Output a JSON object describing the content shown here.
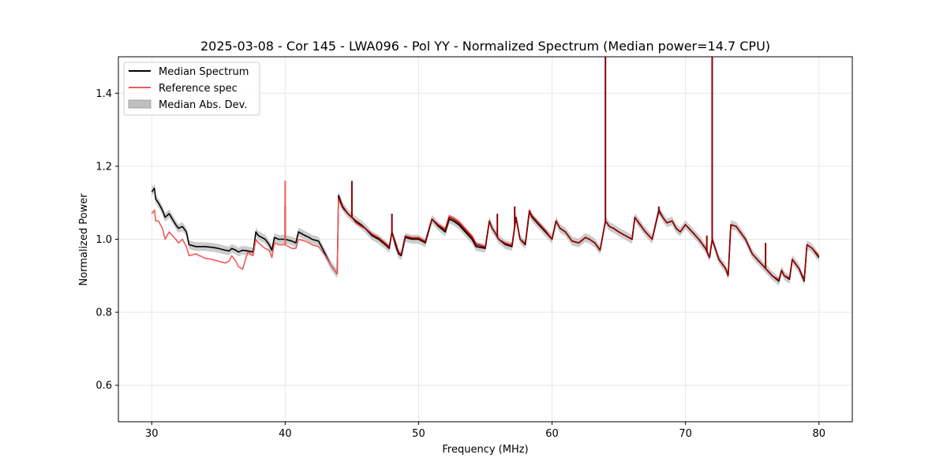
{
  "chart_data": {
    "type": "line",
    "title": "2025-03-08 - Cor 145 - LWA096 - Pol YY - Normalized Spectrum (Median power=14.7 CPU)",
    "xlabel": "Frequency (MHz)",
    "ylabel": "Normalized Power",
    "xlim": [
      27.5,
      82.5
    ],
    "ylim": [
      0.5,
      1.5
    ],
    "xticks": [
      30,
      40,
      50,
      60,
      70,
      80
    ],
    "yticks": [
      0.6,
      0.8,
      1.0,
      1.2,
      1.4
    ],
    "xtick_labels": [
      "30",
      "40",
      "50",
      "60",
      "70",
      "80"
    ],
    "ytick_labels": [
      "0.6",
      "0.8",
      "1.0",
      "1.2",
      "1.4"
    ],
    "grid": true,
    "legend_position": "top-left",
    "legend": [
      "Median Spectrum",
      "Reference spec",
      "Median Abs. Dev."
    ],
    "colors": {
      "median": "#000000",
      "reference": "#f05a5a",
      "overlap": "#8b0000",
      "mad": "#bfbfbf"
    },
    "series": [
      {
        "name": "Median Spectrum",
        "x": [
          30,
          30.2,
          30.3,
          30.5,
          30.8,
          31.0,
          31.3,
          31.8,
          32.0,
          32.3,
          32.6,
          32.8,
          33.3,
          34,
          34.5,
          35,
          35.5,
          35.8,
          36.0,
          36.3,
          36.5,
          36.8,
          37.2,
          37.6,
          37.8,
          38,
          38.5,
          38.8,
          39.0,
          39.2,
          39.5,
          40,
          40.5,
          40.8,
          41,
          41.5,
          41.8,
          42,
          42.5,
          43,
          43.4,
          43.9,
          44.0,
          44.3,
          44.7,
          45.0,
          45.3,
          45.7,
          46,
          46.5,
          47,
          47.5,
          47.8,
          48,
          48.3,
          48.5,
          48.7,
          49.0,
          49.5,
          50,
          50.5,
          51,
          51.5,
          52,
          52.3,
          52.6,
          53,
          54,
          54.3,
          55,
          55.3,
          55.5,
          55.7,
          56.0,
          56.5,
          57,
          57.3,
          57.6,
          58.0,
          58.3,
          58.5,
          59,
          59.5,
          60,
          60.3,
          60.6,
          61.0,
          61.5,
          62,
          62.5,
          62.8,
          63.2,
          63.6,
          64.0,
          64.3,
          64.6,
          65,
          65.5,
          66,
          66.2,
          66.4,
          66.6,
          67,
          67.5,
          68,
          68.3,
          68.6,
          69,
          69.3,
          69.6,
          70,
          70.5,
          71,
          71.5,
          71.8,
          72.0,
          72.5,
          73.0,
          73.2,
          73.4,
          73.8,
          74.5,
          75,
          75.5,
          76,
          76.5,
          77,
          77.2,
          77.4,
          77.8,
          78,
          78.5,
          78.9,
          79.1,
          79.5,
          80
        ],
        "values": [
          1.13,
          1.14,
          1.11,
          1.1,
          1.08,
          1.06,
          1.07,
          1.04,
          1.03,
          1.035,
          1.02,
          0.985,
          0.98,
          0.98,
          0.978,
          0.975,
          0.97,
          0.968,
          0.975,
          0.97,
          0.965,
          0.97,
          0.968,
          0.965,
          1.02,
          1.01,
          1.0,
          0.985,
          0.97,
          1.005,
          1.0,
          1.0,
          0.995,
          0.99,
          1.02,
          1.01,
          1.005,
          1.0,
          0.995,
          0.96,
          0.93,
          0.905,
          1.12,
          1.09,
          1.07,
          1.06,
          1.05,
          1.04,
          1.03,
          1.01,
          1.0,
          0.985,
          0.975,
          1.02,
          0.98,
          0.96,
          0.955,
          1.005,
          1.0,
          1.0,
          0.99,
          1.055,
          1.035,
          1.02,
          1.055,
          1.05,
          1.04,
          1.0,
          0.98,
          0.975,
          1.05,
          1.03,
          1.02,
          1.0,
          0.985,
          0.98,
          1.06,
          1.0,
          0.985,
          1.075,
          1.06,
          1.04,
          1.02,
          1.0,
          1.05,
          1.03,
          1.02,
          0.995,
          0.99,
          1.005,
          1.0,
          0.99,
          0.97,
          1.05,
          1.035,
          1.03,
          1.02,
          1.01,
          1.0,
          1.06,
          1.05,
          1.04,
          1.02,
          1.0,
          1.08,
          1.06,
          1.045,
          1.05,
          1.03,
          1.02,
          1.04,
          1.02,
          1.0,
          0.975,
          0.95,
          1.0,
          0.945,
          0.92,
          0.9,
          1.04,
          1.035,
          1.0,
          0.96,
          0.94,
          0.92,
          0.9,
          0.885,
          0.915,
          0.9,
          0.89,
          0.945,
          0.92,
          0.885,
          0.985,
          0.975,
          0.95
        ]
      },
      {
        "name": "Reference spec",
        "x": [
          30,
          30.2,
          30.3,
          30.5,
          30.8,
          31.0,
          31.3,
          31.8,
          32.0,
          32.3,
          32.6,
          32.8,
          33.3,
          34,
          34.5,
          35,
          35.5,
          35.8,
          36.0,
          36.3,
          36.5,
          36.8,
          37.2,
          37.6,
          37.8,
          38,
          38.5,
          38.8,
          39.0,
          39.2,
          39.5,
          40,
          40.5,
          40.8,
          41,
          41.5,
          41.8,
          42,
          42.5,
          43,
          43.4,
          43.9,
          44.0,
          44.3,
          44.7,
          45.0,
          45.3,
          45.7,
          46,
          46.5,
          47,
          47.5,
          47.8,
          48,
          48.3,
          48.5,
          48.7,
          49.0,
          49.5,
          50,
          50.5,
          51,
          51.5,
          52,
          52.3,
          52.6,
          53,
          54,
          54.3,
          55,
          55.3,
          55.5,
          55.7,
          56.0,
          56.5,
          57,
          57.3,
          57.6,
          58.0,
          58.3,
          58.5,
          59,
          59.5,
          60,
          60.3,
          60.6,
          61.0,
          61.5,
          62,
          62.5,
          62.8,
          63.2,
          63.6,
          64.0,
          64.3,
          64.6,
          65,
          65.5,
          66,
          66.2,
          66.4,
          66.6,
          67,
          67.5,
          68,
          68.3,
          68.6,
          69,
          69.3,
          69.6,
          70,
          70.5,
          71,
          71.5,
          71.8,
          72.0,
          72.5,
          73.0,
          73.2,
          73.4,
          73.8,
          74.5,
          75,
          75.5,
          76,
          76.5,
          77,
          77.2,
          77.4,
          77.8,
          78,
          78.5,
          78.9,
          79.1,
          79.5,
          80
        ],
        "values": [
          1.07,
          1.08,
          1.05,
          1.05,
          1.03,
          1.0,
          1.02,
          1.0,
          0.99,
          1.0,
          0.98,
          0.955,
          0.96,
          0.948,
          0.945,
          0.94,
          0.935,
          0.94,
          0.955,
          0.94,
          0.925,
          0.918,
          0.965,
          0.955,
          1.0,
          0.99,
          0.975,
          0.97,
          0.95,
          0.99,
          0.985,
          0.985,
          0.975,
          0.975,
          1.0,
          0.995,
          0.99,
          0.985,
          0.98,
          0.955,
          0.93,
          0.905,
          1.11,
          1.085,
          1.07,
          1.06,
          1.045,
          1.035,
          1.03,
          1.015,
          1.005,
          0.99,
          0.98,
          1.02,
          0.99,
          0.965,
          0.96,
          1.01,
          1.005,
          1.005,
          0.995,
          1.055,
          1.04,
          1.03,
          1.065,
          1.06,
          1.05,
          1.01,
          0.99,
          0.98,
          1.05,
          1.03,
          1.02,
          1.0,
          0.99,
          0.985,
          1.06,
          1.0,
          0.99,
          1.08,
          1.065,
          1.045,
          1.025,
          1.0,
          1.05,
          1.03,
          1.02,
          0.995,
          0.99,
          1.005,
          1.0,
          0.99,
          0.97,
          1.05,
          1.035,
          1.03,
          1.02,
          1.01,
          1.0,
          1.06,
          1.05,
          1.04,
          1.02,
          1.0,
          1.075,
          1.06,
          1.045,
          1.05,
          1.03,
          1.02,
          1.04,
          1.02,
          1.0,
          0.975,
          0.95,
          1.0,
          0.945,
          0.92,
          0.9,
          1.04,
          1.035,
          1.0,
          0.96,
          0.94,
          0.92,
          0.9,
          0.89,
          0.915,
          0.9,
          0.895,
          0.945,
          0.92,
          0.89,
          0.985,
          0.975,
          0.955
        ]
      }
    ],
    "spikes": [
      {
        "series": "Median Spectrum",
        "x": 40.0,
        "value": 1.09
      },
      {
        "series": "Reference spec",
        "x": 40.0,
        "value": 1.16
      },
      {
        "series": "Median Spectrum",
        "x": 45.0,
        "value": 1.16
      },
      {
        "series": "Median Spectrum",
        "x": 48.0,
        "value": 1.07
      },
      {
        "series": "Median Spectrum",
        "x": 55.9,
        "value": 1.07
      },
      {
        "series": "Median Spectrum",
        "x": 57.2,
        "value": 1.09
      },
      {
        "series": "Median Spectrum",
        "x": 64.0,
        "value": 1.5
      },
      {
        "series": "Median Spectrum",
        "x": 68.0,
        "value": 1.09
      },
      {
        "series": "Median Spectrum",
        "x": 71.6,
        "value": 1.01
      },
      {
        "series": "Median Spectrum",
        "x": 72.0,
        "value": 1.5
      },
      {
        "series": "Median Spectrum",
        "x": 76.0,
        "value": 0.99
      }
    ],
    "mad_width": 0.012
  }
}
